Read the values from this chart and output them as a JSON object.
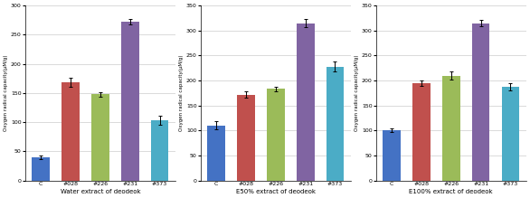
{
  "subplots": [
    {
      "title": "Water extract of deodeok",
      "categories": [
        "C",
        "#028",
        "#226",
        "#231",
        "#373"
      ],
      "values": [
        40,
        168,
        148,
        272,
        103
      ],
      "errors": [
        3,
        8,
        4,
        5,
        8
      ],
      "ylim": [
        0,
        300
      ],
      "yticks": [
        0,
        50,
        100,
        150,
        200,
        250,
        300
      ]
    },
    {
      "title": "E50% extract of deodeok",
      "categories": [
        "C",
        "#028",
        "#226",
        "#231",
        "#373"
      ],
      "values": [
        110,
        172,
        183,
        315,
        228
      ],
      "errors": [
        8,
        7,
        5,
        8,
        10
      ],
      "ylim": [
        0,
        350
      ],
      "yticks": [
        0,
        50,
        100,
        150,
        200,
        250,
        300,
        350
      ]
    },
    {
      "title": "E100% extract of deodeok",
      "categories": [
        "C",
        "#028",
        "#226",
        "#231",
        "#373"
      ],
      "values": [
        101,
        195,
        210,
        315,
        188
      ],
      "errors": [
        4,
        6,
        8,
        6,
        7
      ],
      "ylim": [
        0,
        350
      ],
      "yticks": [
        0,
        50,
        100,
        150,
        200,
        250,
        300,
        350
      ]
    }
  ],
  "bar_colors": [
    "#4472c4",
    "#c0504d",
    "#9bbb59",
    "#8064a2",
    "#4bacc6"
  ],
  "ylabel": "Oxygen radical capacity(μM/g)",
  "ylabel_fontsize": 4.0,
  "title_fontsize": 5.0,
  "tick_fontsize": 4.5,
  "bar_width": 0.6,
  "background_color": "#ffffff",
  "grid_color": "#cccccc"
}
